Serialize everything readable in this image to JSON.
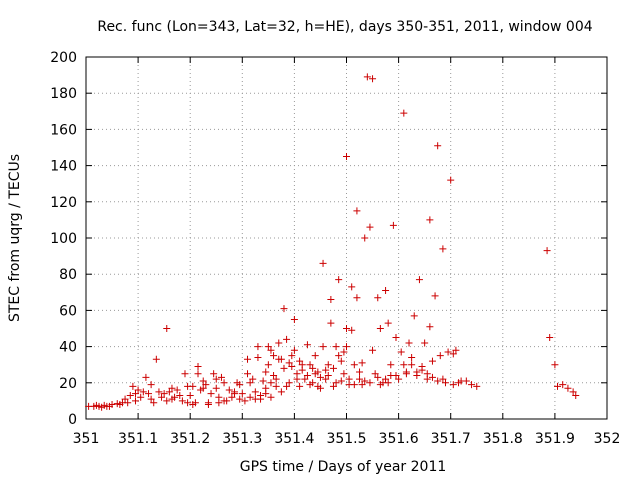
{
  "chart_data": {
    "type": "scatter",
    "title": "Rec. func (Lon=343, Lat=32, h=HE), days 350-351, 2011, window 004",
    "xlabel": "GPS time / Days of year 2011",
    "ylabel": "STEC from uqrg / TECUs",
    "xlim": [
      351,
      352
    ],
    "ylim": [
      0,
      200
    ],
    "xticks": [
      "351",
      "351.1",
      "351.2",
      "351.3",
      "351.4",
      "351.5",
      "351.6",
      "351.7",
      "351.8",
      "351.9",
      "352"
    ],
    "yticks": [
      "0",
      "20",
      "40",
      "60",
      "80",
      "100",
      "120",
      "140",
      "160",
      "180",
      "200"
    ],
    "grid": true,
    "marker": "plus",
    "color": "#cc0000",
    "points": [
      [
        351.005,
        7
      ],
      [
        351.015,
        7
      ],
      [
        351.025,
        7
      ],
      [
        351.03,
        6.5
      ],
      [
        351.04,
        7
      ],
      [
        351.05,
        8
      ],
      [
        351.06,
        8.5
      ],
      [
        351.07,
        9
      ],
      [
        351.075,
        11
      ],
      [
        351.08,
        9
      ],
      [
        351.085,
        13
      ],
      [
        351.09,
        18
      ],
      [
        351.095,
        10
      ],
      [
        351.1,
        16
      ],
      [
        351.105,
        12
      ],
      [
        351.11,
        15
      ],
      [
        351.115,
        23
      ],
      [
        351.12,
        14
      ],
      [
        351.125,
        11
      ],
      [
        351.13,
        9
      ],
      [
        351.135,
        33
      ],
      [
        351.14,
        15
      ],
      [
        351.145,
        12
      ],
      [
        351.15,
        14
      ],
      [
        351.155,
        50
      ],
      [
        351.16,
        15
      ],
      [
        351.165,
        11
      ],
      [
        351.17,
        12
      ],
      [
        351.175,
        16
      ],
      [
        351.18,
        13
      ],
      [
        351.185,
        10
      ],
      [
        351.19,
        25
      ],
      [
        351.195,
        9
      ],
      [
        351.2,
        13
      ],
      [
        351.205,
        18
      ],
      [
        351.21,
        9
      ],
      [
        351.215,
        29
      ],
      [
        351.215,
        25
      ],
      [
        351.22,
        16
      ],
      [
        351.225,
        21
      ],
      [
        351.23,
        19
      ],
      [
        351.235,
        8
      ],
      [
        351.24,
        14
      ],
      [
        351.245,
        25
      ],
      [
        351.25,
        22
      ],
      [
        351.25,
        17
      ],
      [
        351.255,
        12
      ],
      [
        351.26,
        23
      ],
      [
        351.265,
        20
      ],
      [
        351.27,
        10
      ],
      [
        351.275,
        16
      ],
      [
        351.28,
        12
      ],
      [
        351.285,
        14
      ],
      [
        351.29,
        20
      ],
      [
        351.295,
        11
      ],
      [
        351.3,
        14
      ],
      [
        351.305,
        10
      ],
      [
        351.31,
        25
      ],
      [
        351.31,
        33
      ],
      [
        351.315,
        12
      ],
      [
        351.32,
        22
      ],
      [
        351.325,
        15
      ],
      [
        351.33,
        40
      ],
      [
        351.33,
        34
      ],
      [
        351.335,
        11
      ],
      [
        351.34,
        21
      ],
      [
        351.345,
        14
      ],
      [
        351.35,
        40
      ],
      [
        351.35,
        30
      ],
      [
        351.355,
        12
      ],
      [
        351.36,
        35
      ],
      [
        351.36,
        24
      ],
      [
        351.365,
        18
      ],
      [
        351.37,
        42
      ],
      [
        351.37,
        33
      ],
      [
        351.375,
        15
      ],
      [
        351.38,
        61
      ],
      [
        351.38,
        28
      ],
      [
        351.385,
        44
      ],
      [
        351.39,
        20
      ],
      [
        351.395,
        35
      ],
      [
        351.4,
        55
      ],
      [
        351.4,
        38
      ],
      [
        351.405,
        25
      ],
      [
        351.41,
        18
      ],
      [
        351.415,
        30
      ],
      [
        351.42,
        22
      ],
      [
        351.425,
        41
      ],
      [
        351.43,
        19
      ],
      [
        351.435,
        28
      ],
      [
        351.44,
        35
      ],
      [
        351.445,
        26
      ],
      [
        351.45,
        17
      ],
      [
        351.455,
        86
      ],
      [
        351.455,
        40
      ],
      [
        351.46,
        22
      ],
      [
        351.465,
        30
      ],
      [
        351.47,
        66
      ],
      [
        351.47,
        53
      ],
      [
        351.475,
        28
      ],
      [
        351.48,
        20
      ],
      [
        351.485,
        77
      ],
      [
        351.485,
        35
      ],
      [
        351.49,
        32
      ],
      [
        351.495,
        25
      ],
      [
        351.5,
        145
      ],
      [
        351.5,
        50
      ],
      [
        351.5,
        40
      ],
      [
        351.505,
        19
      ],
      [
        351.51,
        73
      ],
      [
        351.51,
        49
      ],
      [
        351.515,
        30
      ],
      [
        351.52,
        67
      ],
      [
        351.52,
        115
      ],
      [
        351.525,
        22
      ],
      [
        351.53,
        19
      ],
      [
        351.535,
        100
      ],
      [
        351.54,
        189
      ],
      [
        351.545,
        106
      ],
      [
        351.55,
        38
      ],
      [
        351.55,
        188
      ],
      [
        351.555,
        25
      ],
      [
        351.56,
        67
      ],
      [
        351.565,
        50
      ],
      [
        351.57,
        20
      ],
      [
        351.575,
        71
      ],
      [
        351.58,
        53
      ],
      [
        351.585,
        24
      ],
      [
        351.59,
        107
      ],
      [
        351.595,
        45
      ],
      [
        351.6,
        22
      ],
      [
        351.605,
        37
      ],
      [
        351.61,
        169
      ],
      [
        351.61,
        30
      ],
      [
        351.615,
        25
      ],
      [
        351.62,
        42
      ],
      [
        351.625,
        34
      ],
      [
        351.63,
        57
      ],
      [
        351.635,
        26
      ],
      [
        351.64,
        77
      ],
      [
        351.645,
        29
      ],
      [
        351.65,
        42
      ],
      [
        351.655,
        22
      ],
      [
        351.66,
        110
      ],
      [
        351.66,
        51
      ],
      [
        351.665,
        32
      ],
      [
        351.67,
        68
      ],
      [
        351.675,
        151
      ],
      [
        351.68,
        35
      ],
      [
        351.685,
        94
      ],
      [
        351.69,
        20
      ],
      [
        351.695,
        37
      ],
      [
        351.7,
        132
      ],
      [
        351.705,
        36
      ],
      [
        351.71,
        38
      ],
      [
        351.715,
        20
      ],
      [
        351.72,
        21
      ],
      [
        351.73,
        21
      ],
      [
        351.74,
        19
      ],
      [
        351.75,
        18
      ],
      [
        351.885,
        93
      ],
      [
        351.89,
        45
      ],
      [
        351.9,
        30
      ],
      [
        351.905,
        18
      ],
      [
        351.915,
        19
      ],
      [
        351.925,
        17
      ],
      [
        351.935,
        15
      ],
      [
        351.94,
        13
      ],
      [
        351.02,
        7.5
      ],
      [
        351.035,
        7.5
      ],
      [
        351.045,
        7
      ],
      [
        351.065,
        8
      ],
      [
        351.095,
        14
      ],
      [
        351.125,
        19
      ],
      [
        351.155,
        10
      ],
      [
        351.165,
        17
      ],
      [
        351.195,
        18
      ],
      [
        351.205,
        8
      ],
      [
        351.225,
        17
      ],
      [
        351.235,
        9
      ],
      [
        351.255,
        9
      ],
      [
        351.265,
        10
      ],
      [
        351.285,
        15
      ],
      [
        351.295,
        19
      ],
      [
        351.315,
        20
      ],
      [
        351.325,
        11
      ],
      [
        351.345,
        26
      ],
      [
        351.355,
        20
      ],
      [
        351.365,
        22
      ],
      [
        351.375,
        33
      ],
      [
        351.39,
        31
      ],
      [
        351.405,
        22
      ],
      [
        351.415,
        27
      ],
      [
        351.425,
        24
      ],
      [
        351.435,
        20
      ],
      [
        351.445,
        18
      ],
      [
        351.465,
        24
      ],
      [
        351.475,
        18
      ],
      [
        351.49,
        21
      ],
      [
        351.505,
        22
      ],
      [
        351.515,
        19
      ],
      [
        351.525,
        26
      ],
      [
        351.535,
        21
      ],
      [
        351.545,
        20
      ],
      [
        351.565,
        19
      ],
      [
        351.575,
        22
      ],
      [
        351.585,
        30
      ],
      [
        351.595,
        24
      ],
      [
        351.615,
        26
      ],
      [
        351.625,
        30
      ],
      [
        351.635,
        24
      ],
      [
        351.645,
        27
      ],
      [
        351.655,
        25
      ],
      [
        351.665,
        23
      ],
      [
        351.675,
        21
      ],
      [
        351.685,
        22
      ],
      [
        351.705,
        19
      ],
      [
        351.335,
        13
      ],
      [
        351.345,
        17
      ],
      [
        351.355,
        38
      ],
      [
        351.385,
        18
      ],
      [
        351.395,
        29
      ],
      [
        351.41,
        32
      ],
      [
        351.43,
        30
      ],
      [
        351.44,
        25
      ],
      [
        351.45,
        23
      ],
      [
        351.46,
        27
      ],
      [
        351.48,
        40
      ],
      [
        351.495,
        37
      ],
      [
        351.53,
        31
      ],
      [
        351.56,
        23
      ],
      [
        351.58,
        20
      ]
    ]
  }
}
